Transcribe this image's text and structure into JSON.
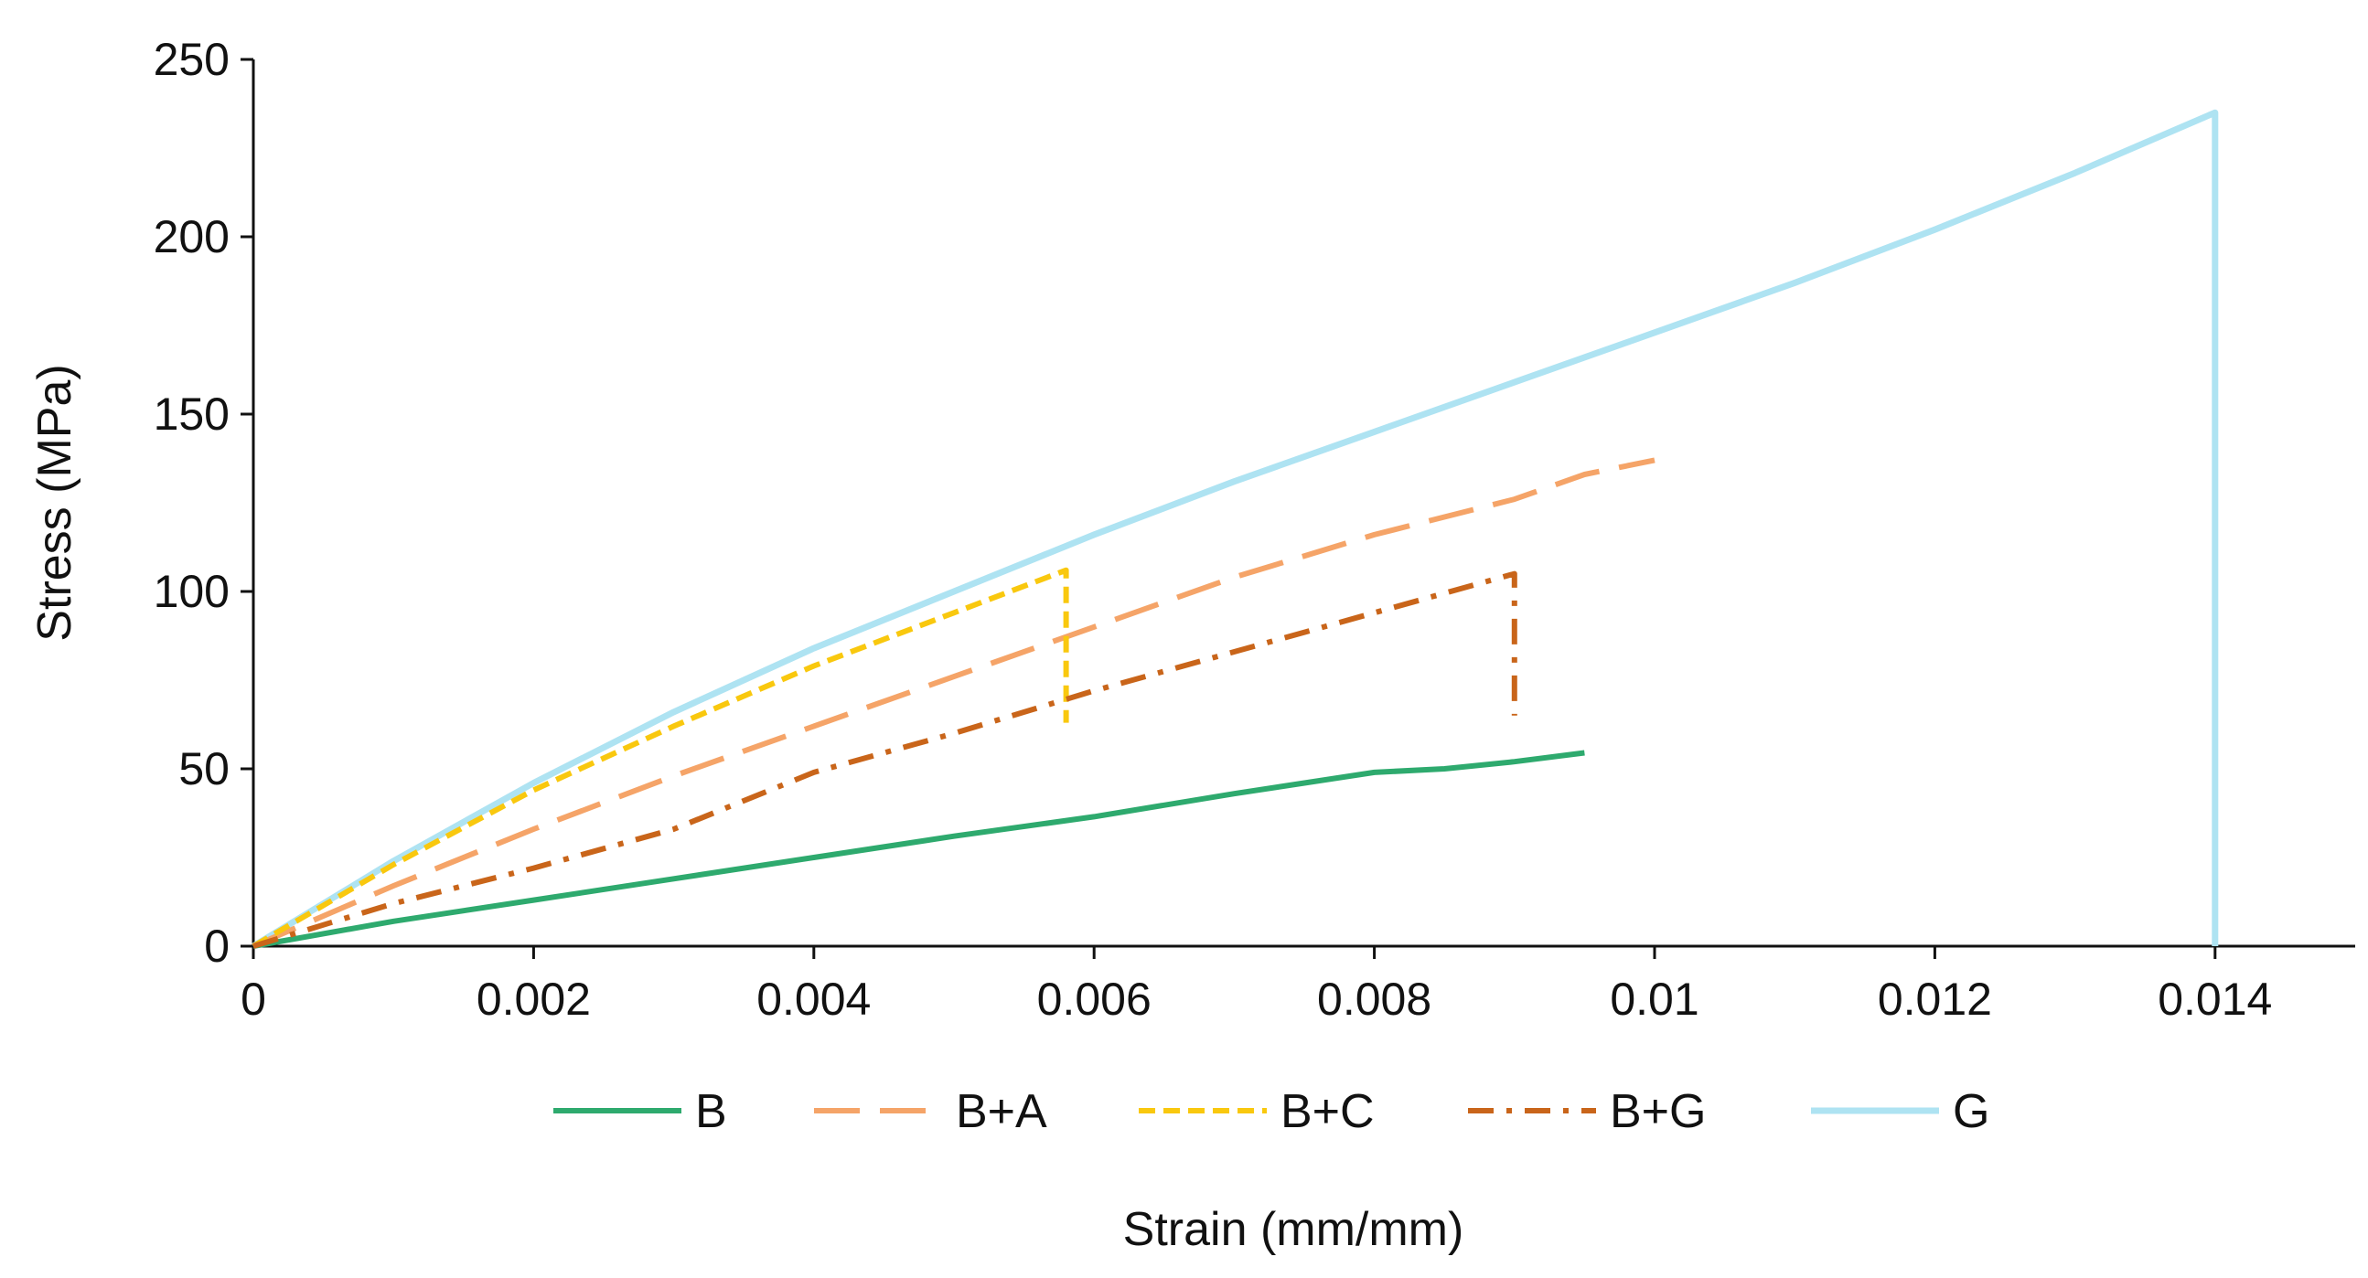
{
  "chart_data": {
    "type": "line",
    "title": "",
    "xlabel": "Strain (mm/mm)",
    "ylabel": "Stress (MPa)",
    "xlim": [
      0,
      0.015
    ],
    "ylim": [
      0,
      250
    ],
    "x_ticks": [
      0,
      0.002,
      0.004,
      0.006,
      0.008,
      0.01,
      0.012,
      0.014
    ],
    "x_tick_labels": [
      "0",
      "0.002",
      "0.004",
      "0.006",
      "0.008",
      "0.01",
      "0.012",
      "0.014"
    ],
    "y_ticks": [
      0,
      50,
      100,
      150,
      200,
      250
    ],
    "y_tick_labels": [
      "0",
      "50",
      "100",
      "150",
      "200",
      "250"
    ],
    "grid": false,
    "legend_position": "bottom",
    "series": [
      {
        "name": "B",
        "color": "#2eaa6e",
        "dash": "solid",
        "x": [
          0,
          0.001,
          0.002,
          0.003,
          0.004,
          0.005,
          0.006,
          0.007,
          0.008,
          0.0085,
          0.009,
          0.0095
        ],
        "y": [
          0,
          7,
          13,
          19,
          25,
          31,
          36.5,
          43,
          49,
          50,
          52,
          54.5
        ]
      },
      {
        "name": "B+A",
        "color": "#f5a468",
        "dash": "long-dash",
        "x": [
          0,
          0.001,
          0.002,
          0.003,
          0.004,
          0.005,
          0.006,
          0.007,
          0.008,
          0.009,
          0.0095,
          0.01
        ],
        "y": [
          0,
          17,
          33,
          48,
          62,
          76,
          90,
          104,
          116,
          126,
          133,
          137
        ]
      },
      {
        "name": "B+C",
        "color": "#f9c80e",
        "dash": "short-dash",
        "x": [
          0,
          0.001,
          0.002,
          0.003,
          0.004,
          0.005,
          0.0058,
          0.0058
        ],
        "y": [
          0,
          23,
          44,
          62,
          79,
          94,
          106,
          63
        ]
      },
      {
        "name": "B+G",
        "color": "#c9651a",
        "dash": "dash-dot",
        "x": [
          0,
          0.001,
          0.002,
          0.003,
          0.004,
          0.005,
          0.006,
          0.007,
          0.008,
          0.009,
          0.009
        ],
        "y": [
          0,
          12,
          22,
          33,
          49,
          60,
          72,
          83,
          94,
          105,
          65
        ]
      },
      {
        "name": "G",
        "color": "#aee3f2",
        "dash": "solid",
        "x": [
          0,
          0.001,
          0.002,
          0.003,
          0.004,
          0.005,
          0.006,
          0.007,
          0.008,
          0.009,
          0.01,
          0.011,
          0.012,
          0.013,
          0.014,
          0.014
        ],
        "y": [
          0,
          24,
          46,
          66,
          84,
          100,
          116,
          131,
          145,
          159,
          173,
          187,
          202,
          218,
          235,
          0
        ]
      }
    ]
  }
}
